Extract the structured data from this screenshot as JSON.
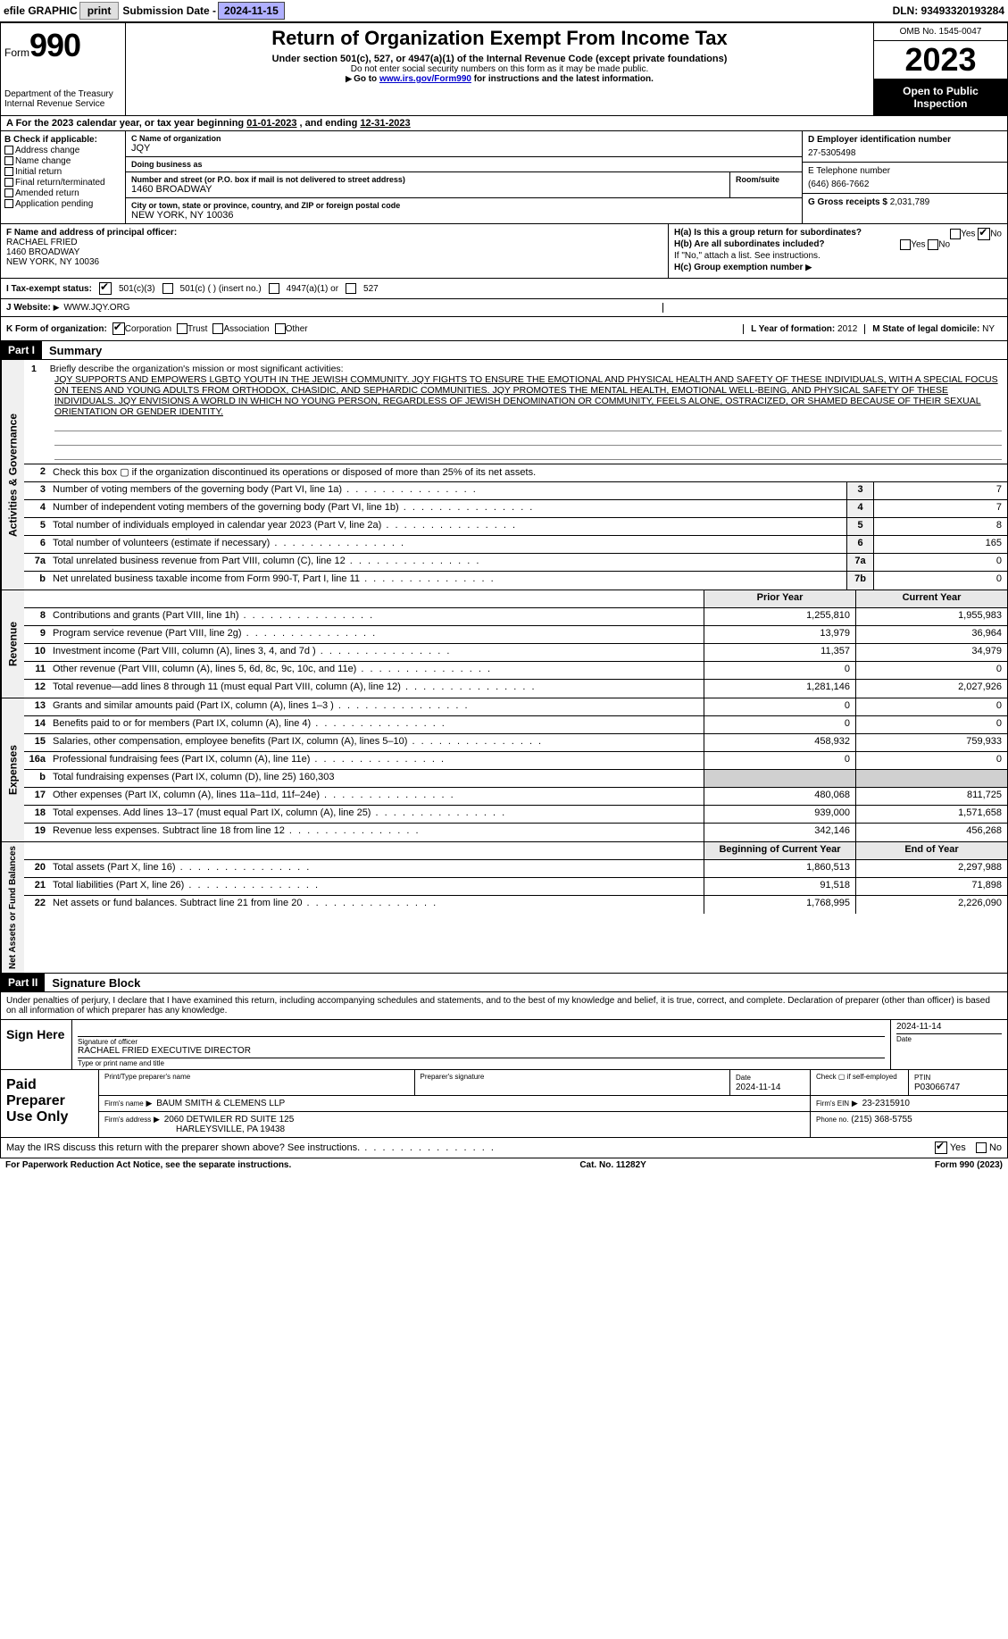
{
  "topbar": {
    "efile": "efile GRAPHIC",
    "print": "print",
    "sub_label": "Submission Date - ",
    "sub_date": "2024-11-15",
    "dln": "DLN: 93493320193284"
  },
  "header": {
    "form_word": "Form",
    "form_num": "990",
    "dept": "Department of the Treasury",
    "irs": "Internal Revenue Service",
    "title": "Return of Organization Exempt From Income Tax",
    "sub1": "Under section 501(c), 527, or 4947(a)(1) of the Internal Revenue Code (except private foundations)",
    "sub2": "Do not enter social security numbers on this form as it may be made public.",
    "sub3_a": "Go to ",
    "sub3_link": "www.irs.gov/Form990",
    "sub3_b": " for instructions and the latest information.",
    "omb": "OMB No. 1545-0047",
    "year": "2023",
    "open": "Open to Public Inspection"
  },
  "row_a": {
    "text_a": "A For the 2023 calendar year, or tax year beginning ",
    "begin": "01-01-2023",
    "text_b": " , and ending ",
    "end": "12-31-2023"
  },
  "b": {
    "label": "B Check if applicable:",
    "opts": [
      "Address change",
      "Name change",
      "Initial return",
      "Final return/terminated",
      "Amended return",
      "Application pending"
    ]
  },
  "c": {
    "name_label": "C Name of organization",
    "name": "JQY",
    "dba_label": "Doing business as",
    "dba": "",
    "addr_label": "Number and street (or P.O. box if mail is not delivered to street address)",
    "room_label": "Room/suite",
    "addr": "1460 BROADWAY",
    "city_label": "City or town, state or province, country, and ZIP or foreign postal code",
    "city": "NEW YORK, NY  10036"
  },
  "d": {
    "label": "D Employer identification number",
    "val": "27-5305498"
  },
  "e": {
    "label": "E Telephone number",
    "val": "(646) 866-7662"
  },
  "g": {
    "label": "G Gross receipts $",
    "val": "2,031,789"
  },
  "f": {
    "label": "F Name and address of principal officer:",
    "name": "RACHAEL FRIED",
    "addr1": "1460 BROADWAY",
    "addr2": "NEW YORK, NY  10036"
  },
  "h": {
    "a": "H(a)  Is this a group return for subordinates?",
    "b": "H(b)  Are all subordinates included?",
    "b_note": "If \"No,\" attach a list. See instructions.",
    "c": "H(c)  Group exemption number",
    "yes": "Yes",
    "no": "No"
  },
  "i": {
    "label": "I  Tax-exempt status:",
    "o1": "501(c)(3)",
    "o2": "501(c) (  ) (insert no.)",
    "o3": "4947(a)(1) or",
    "o4": "527"
  },
  "j": {
    "label": "J  Website:",
    "val": "WWW.JQY.ORG"
  },
  "k": {
    "label": "K Form of organization:",
    "o1": "Corporation",
    "o2": "Trust",
    "o3": "Association",
    "o4": "Other"
  },
  "l": {
    "label": "L Year of formation:",
    "val": "2012"
  },
  "m": {
    "label": "M State of legal domicile:",
    "val": "NY"
  },
  "part1": {
    "hdr": "Part I",
    "title": "Summary"
  },
  "tabs": {
    "gov": "Activities & Governance",
    "rev": "Revenue",
    "exp": "Expenses",
    "net": "Net Assets or Fund Balances"
  },
  "mission": {
    "num": "1",
    "intro": "Briefly describe the organization's mission or most significant activities:",
    "text": "JQY SUPPORTS AND EMPOWERS LGBTQ YOUTH IN THE JEWISH COMMUNITY. JQY FIGHTS TO ENSURE THE EMOTIONAL AND PHYSICAL HEALTH AND SAFETY OF THESE INDIVIDUALS, WITH A SPECIAL FOCUS ON TEENS AND YOUNG ADULTS FROM ORTHODOX, CHASIDIC, AND SEPHARDIC COMMUNITIES. JQY PROMOTES THE MENTAL HEALTH, EMOTIONAL WELL-BEING, AND PHYSICAL SAFETY OF THESE INDIVIDUALS. JQY ENVISIONS A WORLD IN WHICH NO YOUNG PERSON, REGARDLESS OF JEWISH DENOMINATION OR COMMUNITY, FEELS ALONE, OSTRACIZED, OR SHAMED BECAUSE OF THEIR SEXUAL ORIENTATION OR GENDER IDENTITY."
  },
  "lines_gov": [
    {
      "n": "2",
      "d": "Check this box ▢ if the organization discontinued its operations or disposed of more than 25% of its net assets."
    },
    {
      "n": "3",
      "d": "Number of voting members of the governing body (Part VI, line 1a)",
      "box": "3",
      "v": "7"
    },
    {
      "n": "4",
      "d": "Number of independent voting members of the governing body (Part VI, line 1b)",
      "box": "4",
      "v": "7"
    },
    {
      "n": "5",
      "d": "Total number of individuals employed in calendar year 2023 (Part V, line 2a)",
      "box": "5",
      "v": "8"
    },
    {
      "n": "6",
      "d": "Total number of volunteers (estimate if necessary)",
      "box": "6",
      "v": "165"
    },
    {
      "n": "7a",
      "d": "Total unrelated business revenue from Part VIII, column (C), line 12",
      "box": "7a",
      "v": "0"
    },
    {
      "n": "b",
      "d": "Net unrelated business taxable income from Form 990-T, Part I, line 11",
      "box": "7b",
      "v": "0"
    }
  ],
  "cols": {
    "prior": "Prior Year",
    "curr": "Current Year"
  },
  "lines_rev": [
    {
      "n": "8",
      "d": "Contributions and grants (Part VIII, line 1h)",
      "p": "1,255,810",
      "c": "1,955,983"
    },
    {
      "n": "9",
      "d": "Program service revenue (Part VIII, line 2g)",
      "p": "13,979",
      "c": "36,964"
    },
    {
      "n": "10",
      "d": "Investment income (Part VIII, column (A), lines 3, 4, and 7d )",
      "p": "11,357",
      "c": "34,979"
    },
    {
      "n": "11",
      "d": "Other revenue (Part VIII, column (A), lines 5, 6d, 8c, 9c, 10c, and 11e)",
      "p": "0",
      "c": "0"
    },
    {
      "n": "12",
      "d": "Total revenue—add lines 8 through 11 (must equal Part VIII, column (A), line 12)",
      "p": "1,281,146",
      "c": "2,027,926"
    }
  ],
  "lines_exp": [
    {
      "n": "13",
      "d": "Grants and similar amounts paid (Part IX, column (A), lines 1–3 )",
      "p": "0",
      "c": "0"
    },
    {
      "n": "14",
      "d": "Benefits paid to or for members (Part IX, column (A), line 4)",
      "p": "0",
      "c": "0"
    },
    {
      "n": "15",
      "d": "Salaries, other compensation, employee benefits (Part IX, column (A), lines 5–10)",
      "p": "458,932",
      "c": "759,933"
    },
    {
      "n": "16a",
      "d": "Professional fundraising fees (Part IX, column (A), line 11e)",
      "p": "0",
      "c": "0"
    },
    {
      "n": "b",
      "d": "Total fundraising expenses (Part IX, column (D), line 25) 160,303",
      "shaded": true
    },
    {
      "n": "17",
      "d": "Other expenses (Part IX, column (A), lines 11a–11d, 11f–24e)",
      "p": "480,068",
      "c": "811,725"
    },
    {
      "n": "18",
      "d": "Total expenses. Add lines 13–17 (must equal Part IX, column (A), line 25)",
      "p": "939,000",
      "c": "1,571,658"
    },
    {
      "n": "19",
      "d": "Revenue less expenses. Subtract line 18 from line 12",
      "p": "342,146",
      "c": "456,268"
    }
  ],
  "cols2": {
    "begin": "Beginning of Current Year",
    "end": "End of Year"
  },
  "lines_net": [
    {
      "n": "20",
      "d": "Total assets (Part X, line 16)",
      "p": "1,860,513",
      "c": "2,297,988"
    },
    {
      "n": "21",
      "d": "Total liabilities (Part X, line 26)",
      "p": "91,518",
      "c": "71,898"
    },
    {
      "n": "22",
      "d": "Net assets or fund balances. Subtract line 21 from line 20",
      "p": "1,768,995",
      "c": "2,226,090"
    }
  ],
  "part2": {
    "hdr": "Part II",
    "title": "Signature Block"
  },
  "sig": {
    "intro": "Under penalties of perjury, I declare that I have examined this return, including accompanying schedules and statements, and to the best of my knowledge and belief, it is true, correct, and complete. Declaration of preparer (other than officer) is based on all information of which preparer has any knowledge.",
    "sign_here": "Sign Here",
    "sig_label": "Signature of officer",
    "officer": "RACHAEL FRIED  EXECUTIVE DIRECTOR",
    "type_label": "Type or print name and title",
    "date_label": "Date",
    "date": "2024-11-14"
  },
  "prep": {
    "label": "Paid Preparer Use Only",
    "print_label": "Print/Type preparer's name",
    "prep_sig_label": "Preparer's signature",
    "date_label": "Date",
    "date": "2024-11-14",
    "check_label": "Check ▢ if self-employed",
    "ptin_label": "PTIN",
    "ptin": "P03066747",
    "firm_label": "Firm's name",
    "firm": "BAUM SMITH & CLEMENS LLP",
    "ein_label": "Firm's EIN",
    "ein": "23-2315910",
    "addr_label": "Firm's address",
    "addr1": "2060 DETWILER RD SUITE 125",
    "addr2": "HARLEYSVILLE, PA  19438",
    "phone_label": "Phone no.",
    "phone": "(215) 368-5755"
  },
  "discuss": {
    "text": "May the IRS discuss this return with the preparer shown above? See instructions.",
    "yes": "Yes",
    "no": "No"
  },
  "footer": {
    "left": "For Paperwork Reduction Act Notice, see the separate instructions.",
    "mid": "Cat. No. 11282Y",
    "right": "Form 990 (2023)"
  }
}
